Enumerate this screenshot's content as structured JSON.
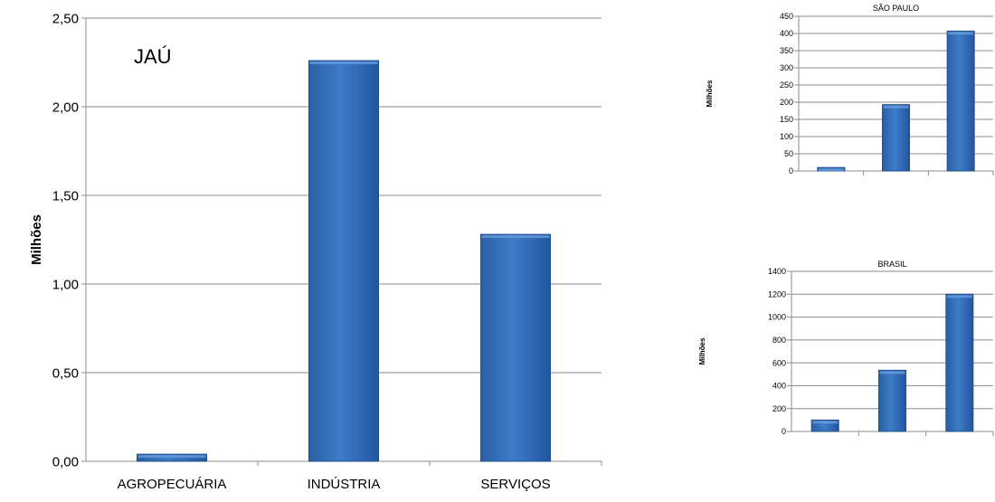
{
  "chart_data": [
    {
      "type": "bar",
      "title": "JAÚ",
      "ylabel": "Milhões",
      "categories": [
        "AGROPECUÁRIA",
        "INDÚSTRIA",
        "SERVIÇOS"
      ],
      "values": [
        0.04,
        2.26,
        1.28
      ],
      "ylim": [
        0,
        2.5
      ],
      "yticks": [
        "0,00",
        "0,50",
        "1,00",
        "1,50",
        "2,00",
        "2,50"
      ],
      "grid": true,
      "bar_color": "#3d7cc9"
    },
    {
      "type": "bar",
      "title": "SÃO PAULO",
      "ylabel": "Milhões",
      "categories": [
        "",
        "",
        ""
      ],
      "values": [
        10,
        193,
        407
      ],
      "ylim": [
        0,
        450
      ],
      "yticks": [
        "0",
        "50",
        "100",
        "150",
        "200",
        "250",
        "300",
        "350",
        "400",
        "450"
      ],
      "grid": true,
      "bar_color": "#3d7cc9"
    },
    {
      "type": "bar",
      "title": "BRASIL",
      "ylabel": "Milhões",
      "categories": [
        "",
        "",
        ""
      ],
      "values": [
        100,
        535,
        1200
      ],
      "ylim": [
        0,
        1400
      ],
      "yticks": [
        "0",
        "200",
        "400",
        "600",
        "800",
        "1000",
        "1200",
        "1400"
      ],
      "grid": true,
      "bar_color": "#3d7cc9"
    }
  ]
}
